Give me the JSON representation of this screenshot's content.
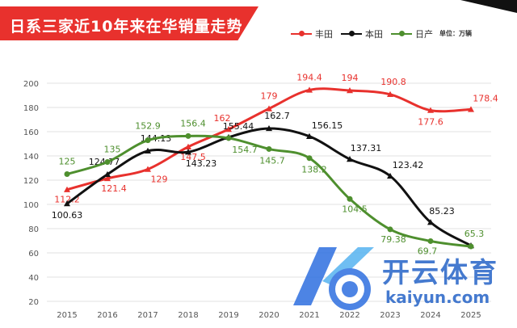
{
  "header": {
    "title": "日系三家近10年来在华销量走势",
    "unit": "单位：万辆"
  },
  "watermark": {
    "brand": "开云体育",
    "url": "kaiyun.com"
  },
  "chart_data": {
    "type": "line",
    "x": [
      "2015",
      "2016",
      "2017",
      "2018",
      "2019",
      "2020",
      "2021",
      "2022",
      "2023",
      "2024",
      "2025"
    ],
    "ylim": [
      20,
      200
    ],
    "yticks": [
      20,
      40,
      60,
      80,
      100,
      120,
      140,
      160,
      180,
      200
    ],
    "grid": true,
    "legend_position": "top-right",
    "series": [
      {
        "name": "丰田",
        "color": "#e8312d",
        "marker": "triangle",
        "values": [
          112.2,
          121.4,
          129,
          147.5,
          162,
          179,
          194.4,
          194,
          190.8,
          177.6,
          178.4
        ],
        "labels": [
          "112.2",
          "121.4",
          "129",
          "147.5",
          "162",
          "179",
          "194.4",
          "194",
          "190.8",
          "177.6",
          "178.4"
        ]
      },
      {
        "name": "本田",
        "color": "#111111",
        "marker": "triangle",
        "values": [
          100.63,
          124.77,
          144.13,
          143.23,
          155.44,
          162.7,
          156.15,
          137.31,
          123.42,
          85.23,
          66
        ],
        "labels": [
          "100.63",
          "124.77",
          "144.13",
          "143.23",
          "155.44",
          "162.7",
          "156.15",
          "137.31",
          "123.42",
          "85.23",
          ""
        ]
      },
      {
        "name": "日产",
        "color": "#4e8f2e",
        "marker": "circle",
        "values": [
          125,
          135,
          152.9,
          156.4,
          154.7,
          145.7,
          138.2,
          104.5,
          79.38,
          69.7,
          65.3
        ],
        "labels": [
          "125",
          "135",
          "152.9",
          "156.4",
          "154.7",
          "145.7",
          "138.2",
          "104.5",
          "79.38",
          "69.7",
          "65.3"
        ]
      }
    ]
  }
}
